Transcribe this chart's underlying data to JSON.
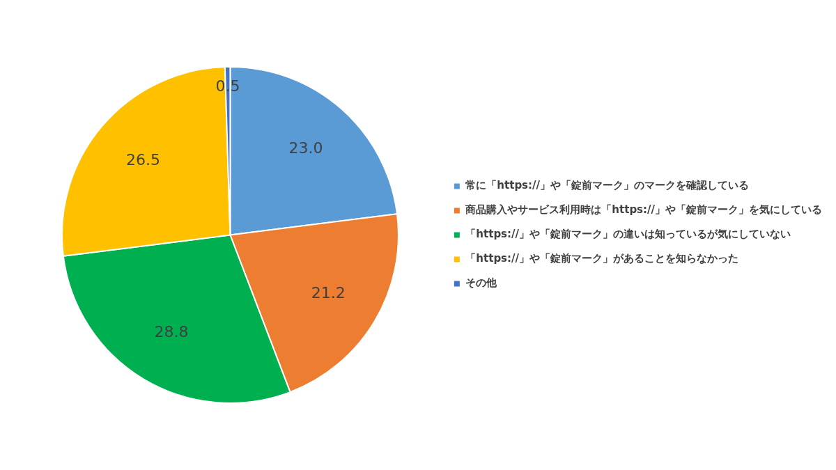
{
  "chart_data": {
    "type": "pie",
    "categories": [
      "常に「https://」や「錠前マーク」のマークを確認している",
      "商品購入やサービス利用時は「https://」や「錠前マーク」を気にしている",
      "「https://」や「錠前マーク」の違いは知っているが気にしていない",
      "「https://」や「錠前マーク」があることを知らなかった",
      "その他"
    ],
    "values": [
      23.0,
      21.2,
      28.8,
      26.5,
      0.5
    ],
    "value_labels": [
      "23.0",
      "21.2",
      "28.8",
      "26.5",
      "0.5"
    ],
    "colors": [
      "#5b9bd5",
      "#ed7d31",
      "#00b050",
      "#ffc000",
      "#4472c4"
    ],
    "legend": "right"
  }
}
